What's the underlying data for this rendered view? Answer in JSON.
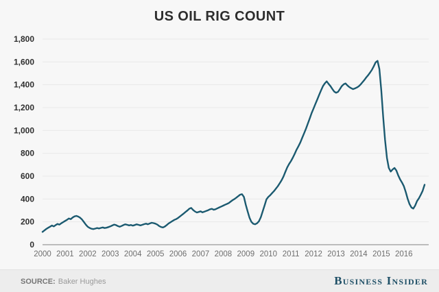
{
  "title": "US OIL RIG COUNT",
  "footer": {
    "source_label": "SOURCE:",
    "source_value": "Baker Hughes",
    "brand": "Business Insider"
  },
  "colors": {
    "line": "#1b5a70",
    "grid": "#e8e8e8",
    "axis": "#a8a8a8",
    "background": "#f7f7f7",
    "footer_bg": "#ededed",
    "brand": "#1e4f66"
  },
  "chart_data": {
    "type": "line",
    "title": "US OIL RIG COUNT",
    "series_name": "US oil rig count",
    "xlabel": "",
    "ylabel": "",
    "ylim": [
      0,
      1800
    ],
    "grid": "horizontal",
    "legend": "none",
    "x_start_year": 2000,
    "points_per_year": 12,
    "x_tick_labels": [
      "2000",
      "2001",
      "2002",
      "2003",
      "2004",
      "2005",
      "2006",
      "2007",
      "2008",
      "2009",
      "2010",
      "2011",
      "2012",
      "2013",
      "2014",
      "2015",
      "2016"
    ],
    "y_ticks": [
      0,
      200,
      400,
      600,
      800,
      1000,
      1200,
      1400,
      1600,
      1800
    ],
    "y_tick_labels": [
      "0",
      "200",
      "400",
      "600",
      "800",
      "1,000",
      "1,200",
      "1,400",
      "1,600",
      "1,800"
    ],
    "values": [
      112,
      125,
      138,
      148,
      158,
      168,
      160,
      172,
      182,
      176,
      188,
      198,
      208,
      218,
      230,
      224,
      238,
      248,
      252,
      246,
      236,
      220,
      198,
      176,
      158,
      147,
      140,
      137,
      141,
      146,
      142,
      147,
      151,
      146,
      149,
      154,
      160,
      168,
      176,
      172,
      163,
      157,
      164,
      172,
      178,
      174,
      169,
      173,
      167,
      172,
      178,
      174,
      169,
      174,
      180,
      184,
      179,
      186,
      192,
      189,
      184,
      176,
      163,
      155,
      151,
      159,
      172,
      186,
      197,
      207,
      217,
      224,
      234,
      247,
      260,
      273,
      287,
      300,
      315,
      322,
      304,
      291,
      282,
      287,
      292,
      283,
      289,
      296,
      302,
      310,
      314,
      306,
      311,
      319,
      327,
      334,
      342,
      350,
      357,
      365,
      378,
      390,
      400,
      412,
      425,
      438,
      442,
      418,
      350,
      290,
      235,
      200,
      183,
      179,
      188,
      205,
      242,
      292,
      345,
      398,
      418,
      434,
      452,
      470,
      490,
      512,
      537,
      563,
      596,
      636,
      676,
      706,
      732,
      762,
      796,
      832,
      862,
      896,
      936,
      976,
      1016,
      1062,
      1106,
      1152,
      1192,
      1232,
      1272,
      1312,
      1352,
      1388,
      1412,
      1430,
      1408,
      1388,
      1363,
      1340,
      1330,
      1338,
      1362,
      1388,
      1404,
      1412,
      1394,
      1380,
      1370,
      1362,
      1368,
      1376,
      1386,
      1402,
      1422,
      1442,
      1464,
      1484,
      1506,
      1530,
      1562,
      1596,
      1609,
      1538,
      1348,
      1120,
      920,
      760,
      672,
      640,
      658,
      672,
      650,
      606,
      572,
      545,
      512,
      462,
      402,
      356,
      326,
      316,
      342,
      382,
      406,
      438,
      472,
      525
    ]
  }
}
